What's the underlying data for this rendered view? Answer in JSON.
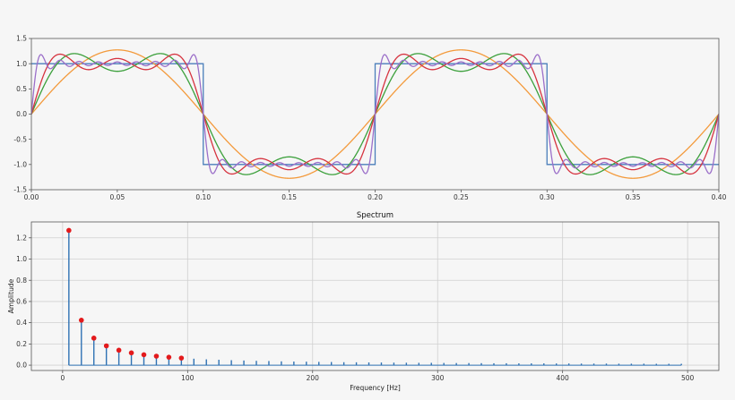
{
  "chart_data": [
    {
      "type": "line",
      "title": "",
      "xlabel": "",
      "ylabel": "",
      "xlim": [
        0.0,
        0.4
      ],
      "ylim": [
        -1.5,
        1.5
      ],
      "grid": false,
      "x_ticks": [
        "0.00",
        "0.05",
        "0.10",
        "0.15",
        "0.20",
        "0.25",
        "0.30",
        "0.35",
        "0.40"
      ],
      "y_ticks": [
        "1.5",
        "1.0",
        "0.5",
        "0.0",
        "-0.5",
        "-1.0",
        "-1.5"
      ],
      "series": [
        {
          "role": "square wave",
          "frequency_hz": 5,
          "amplitude": 1.0,
          "color": "#4a7ebb"
        },
        {
          "role": "fourier sum",
          "harmonics": [
            5
          ],
          "color": "#f39a3c"
        },
        {
          "role": "fourier sum",
          "harmonics": [
            5,
            15
          ],
          "color": "#3ca03c"
        },
        {
          "role": "fourier sum",
          "harmonics": [
            5,
            15,
            25
          ],
          "color": "#d6333f"
        },
        {
          "role": "fourier sum",
          "harmonics": [
            5,
            15,
            25,
            35,
            45,
            55,
            65,
            75,
            85
          ],
          "color": "#9b6fc9"
        }
      ]
    },
    {
      "type": "stem",
      "title": "Spectrum",
      "xlabel": "Frequency [Hz]",
      "ylabel": "Amplitude",
      "xlim": [
        -25,
        525
      ],
      "ylim": [
        -0.05,
        1.35
      ],
      "grid": true,
      "x_ticks": [
        "0",
        "100",
        "200",
        "300",
        "400",
        "500"
      ],
      "y_ticks": [
        "0.0",
        "0.2",
        "0.4",
        "0.6",
        "0.8",
        "1.0",
        "1.2"
      ],
      "stem_color": "#2f72b4",
      "marker_color": "#e31a1c",
      "stems": {
        "x": [
          5,
          15,
          25,
          35,
          45,
          55,
          65,
          75,
          85,
          95,
          105,
          115,
          125,
          135,
          145,
          155,
          165,
          175,
          185,
          195,
          205,
          215,
          225,
          235,
          245,
          255,
          265,
          275,
          285,
          295,
          305,
          315,
          325,
          335,
          345,
          355,
          365,
          375,
          385,
          395,
          405,
          415,
          425,
          435,
          445,
          455,
          465,
          475,
          485,
          495
        ],
        "y": [
          1.27,
          0.424,
          0.255,
          0.182,
          0.141,
          0.116,
          0.098,
          0.085,
          0.075,
          0.067,
          0.061,
          0.055,
          0.051,
          0.047,
          0.044,
          0.041,
          0.039,
          0.036,
          0.034,
          0.033,
          0.031,
          0.03,
          0.028,
          0.027,
          0.026,
          0.025,
          0.024,
          0.023,
          0.022,
          0.022,
          0.021,
          0.02,
          0.02,
          0.019,
          0.018,
          0.018,
          0.017,
          0.017,
          0.017,
          0.016,
          0.016,
          0.015,
          0.015,
          0.015,
          0.014,
          0.014,
          0.014,
          0.013,
          0.013,
          0.013
        ]
      },
      "markers": {
        "x": [
          5,
          15,
          25,
          35,
          45,
          55,
          65,
          75,
          85,
          95
        ],
        "y": [
          1.27,
          0.424,
          0.255,
          0.182,
          0.141,
          0.116,
          0.098,
          0.085,
          0.075,
          0.067
        ]
      }
    }
  ]
}
